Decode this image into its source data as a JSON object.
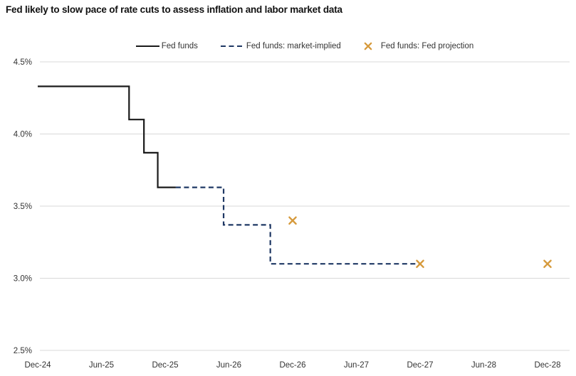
{
  "chart_data": {
    "type": "line",
    "title": "Fed likely to slow pace of rate cuts to assess inflation and labor market data",
    "x_unit": "months since Dec-2024",
    "x_tick_labels": [
      "Dec-24",
      "Jun-25",
      "Dec-25",
      "Jun-26",
      "Dec-26",
      "Jun-27",
      "Dec-27",
      "Jun-28",
      "Dec-28"
    ],
    "x_ticks_months": [
      0,
      6,
      12,
      18,
      24,
      30,
      36,
      42,
      48
    ],
    "xlim_months": [
      0,
      50
    ],
    "ylim": [
      2.5,
      4.5
    ],
    "y_ticks": [
      "4.5%",
      "4.0%",
      "3.5%",
      "3.0%",
      "2.5%"
    ],
    "y_tick_values": [
      4.5,
      4.0,
      3.5,
      3.0,
      2.5
    ],
    "grid": "horizontal",
    "legend_position": "top-center",
    "colors": {
      "fed_funds": "#1a1a1a",
      "market_implied": "#1f3864",
      "fed_projection": "#d69a3c",
      "gridline": "#d9d9d9",
      "axis_text": "#333333",
      "title_text": "#111111",
      "background": "#ffffff"
    },
    "series": [
      {
        "name": "Fed funds",
        "type": "step-line",
        "style": "solid",
        "color_key": "fed_funds",
        "points": [
          [
            0,
            4.33
          ],
          [
            8.6,
            4.33
          ],
          [
            8.6,
            4.1
          ],
          [
            10,
            4.1
          ],
          [
            10,
            3.87
          ],
          [
            11.3,
            3.87
          ],
          [
            11.3,
            3.63
          ],
          [
            13,
            3.63
          ]
        ]
      },
      {
        "name": "Fed funds: market-implied",
        "type": "step-line",
        "style": "dashed",
        "color_key": "market_implied",
        "points": [
          [
            13,
            3.63
          ],
          [
            17.5,
            3.63
          ],
          [
            17.5,
            3.37
          ],
          [
            21.9,
            3.37
          ],
          [
            21.9,
            3.1
          ],
          [
            36,
            3.1
          ]
        ]
      },
      {
        "name": "Fed funds: Fed projection",
        "type": "scatter",
        "style": "x-marker",
        "color_key": "fed_projection",
        "points": [
          [
            24,
            3.4
          ],
          [
            36,
            3.1
          ],
          [
            48,
            3.1
          ]
        ]
      }
    ]
  }
}
